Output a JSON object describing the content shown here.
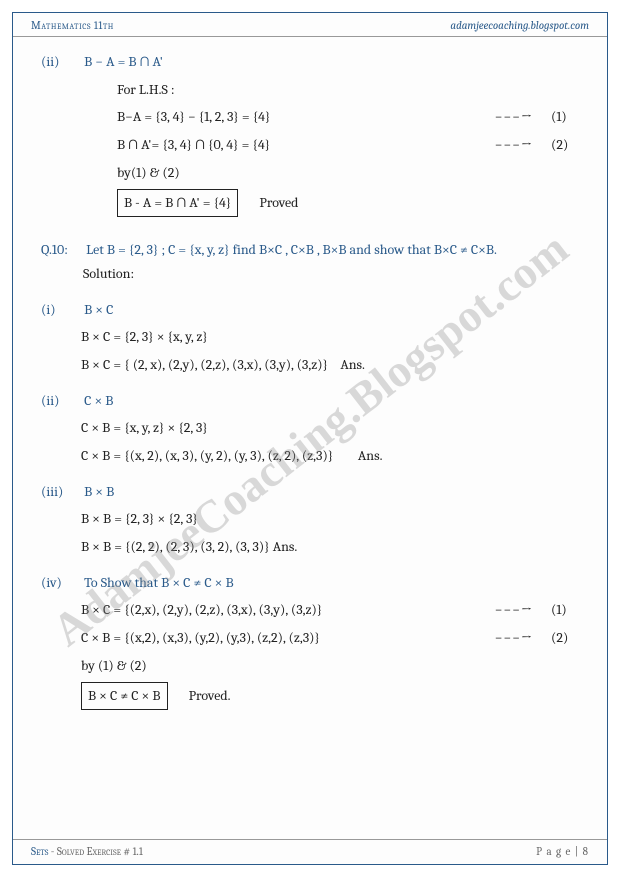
{
  "header": {
    "left": "Mathematics 11th",
    "right": "adamjeecoaching.blogspot.com"
  },
  "watermark": "AdamjeeCoaching.Blogspot.com",
  "arrow": "−−−→",
  "prev": {
    "roman": "(ii)",
    "title": "B − A = B ∩ A'",
    "for": "For L.H.S :",
    "l1": "B−A = {3, 4} − {1, 2, 3} = {4}",
    "n1": "(1)",
    "l2": "B ∩ A'= {3, 4} ∩ {0, 4} = {4}",
    "n2": "(2)",
    "by": "by(1) & (2)",
    "boxed": "B - A = B ∩ A' = {4}",
    "proved": "Proved"
  },
  "q10": {
    "label": "Q.10:",
    "text": "Let B = {2, 3} ; C = {x, y, z} find B×C , C×B , B×B and show that B×C ≠ C×B.",
    "solution": "Solution:",
    "p1": {
      "roman": "(i)",
      "head": "B × C",
      "l1": "B × C = {2, 3} × {x, y, z}",
      "l2": "B × C = { (2, x), (2,y), (2,z), (3,x), (3,y), (3,z)}",
      "ans": "Ans."
    },
    "p2": {
      "roman": "(ii)",
      "head": "C × B",
      "l1": "C × B = {x, y, z} × {2, 3}",
      "l2": "C × B = {(x, 2), (x, 3), (y, 2), (y, 3), (z, 2), (z,3)}",
      "ans": "Ans."
    },
    "p3": {
      "roman": "(iii)",
      "head": "B × B",
      "l1": "B × B = {2, 3} × {2, 3}",
      "l2": "B × B = {(2, 2), (2, 3), (3, 2), (3, 3)} Ans."
    },
    "p4": {
      "roman": "(iv)",
      "head": "To Show that B × C ≠ C × B",
      "l1": "B × C = {(2,x), (2,y), (2,z), (3,x), (3,y), (3,z)}",
      "n1": "(1)",
      "l2": "C × B = {(x,2), (x,3), (y,2), (y,3), (z,2), (z,3)}",
      "n2": "(2)",
      "by": "by (1) & (2)",
      "boxed": "B × C ≠ C × B",
      "proved": "Proved."
    }
  },
  "footer": {
    "sets": "Sets",
    "ex": " - Solved Exercise # 1.1",
    "page": "P a g e | 8"
  },
  "colors": {
    "accent": "#2a5a8a",
    "text": "#222222",
    "rule": "#999999",
    "wm": "rgba(140,140,140,0.32)"
  }
}
